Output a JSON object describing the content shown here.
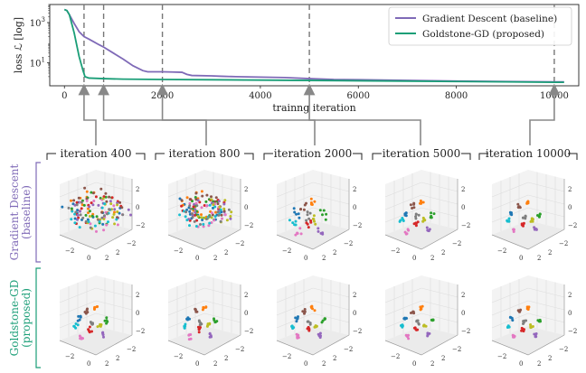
{
  "chart_data": {
    "type": "line",
    "xlabel": "trainng iteration",
    "ylabel": "loss ℒ [log]",
    "yscale": "log",
    "xlim": [
      -300,
      10500
    ],
    "ylim": [
      0.7,
      8000
    ],
    "x_ticks": [
      "0",
      "2000",
      "4000",
      "6000",
      "8000",
      "10000"
    ],
    "y_ticks": [
      {
        "base": "10",
        "exp": "1"
      },
      {
        "base": "10",
        "exp": "3"
      }
    ],
    "legend_position": "top-right",
    "series": [
      {
        "name": "Gradient Descent (baseline)",
        "color": "#7f6ab7",
        "x": [
          0,
          50,
          100,
          200,
          300,
          400,
          500,
          600,
          700,
          800,
          1000,
          1200,
          1400,
          1600,
          1700,
          1750,
          2000,
          2200,
          2400,
          2500,
          2600,
          3000,
          3200,
          3500,
          4000,
          4500,
          5000,
          5500,
          6000,
          7000,
          8000,
          9000,
          10000,
          10200
        ],
        "y": [
          4500,
          4000,
          2500,
          900,
          350,
          200,
          150,
          110,
          80,
          60,
          30,
          15,
          7,
          4,
          3.5,
          3.5,
          3.5,
          3.4,
          3.3,
          2.6,
          2.3,
          2.2,
          2.1,
          2.0,
          1.9,
          1.8,
          1.6,
          1.45,
          1.4,
          1.3,
          1.2,
          1.15,
          1.1,
          1.1
        ]
      },
      {
        "name": "Goldstone-GD (proposed)",
        "color": "#1a9e77",
        "x": [
          0,
          50,
          100,
          200,
          300,
          380,
          420,
          500,
          800,
          1200,
          2000,
          3000,
          4000,
          5000,
          6000,
          7000,
          8000,
          9000,
          10000,
          10200
        ],
        "y": [
          4500,
          4000,
          2500,
          300,
          20,
          4,
          2,
          1.7,
          1.6,
          1.5,
          1.45,
          1.4,
          1.35,
          1.3,
          1.25,
          1.2,
          1.15,
          1.1,
          1.05,
          1.05
        ]
      }
    ],
    "vlines": [
      400,
      800,
      2000,
      5000,
      10000
    ],
    "snapshots": {
      "iteration_labels": [
        "iteration 400",
        "iteration 800",
        "iteration 2000",
        "iteration 5000",
        "iteration 10000"
      ],
      "row_labels": [
        {
          "line1": "Gradient Descent",
          "line2": "(baseline)",
          "color": "#7f6ab7"
        },
        {
          "line1": "Goldstone-GD",
          "line2": "(proposed)",
          "color": "#1a9e77"
        }
      ],
      "panel_ticks": {
        "x": [
          "−2",
          "0",
          "2"
        ],
        "y": [
          "−2",
          "2"
        ],
        "z": [
          "−2",
          "0",
          "2"
        ]
      },
      "cluster_colors": [
        "#1f77b4",
        "#ff7f0e",
        "#2ca02c",
        "#d62728",
        "#9467bd",
        "#8c564b",
        "#e377c2",
        "#bcbd22",
        "#17becf",
        "#7f7f7f"
      ]
    }
  }
}
